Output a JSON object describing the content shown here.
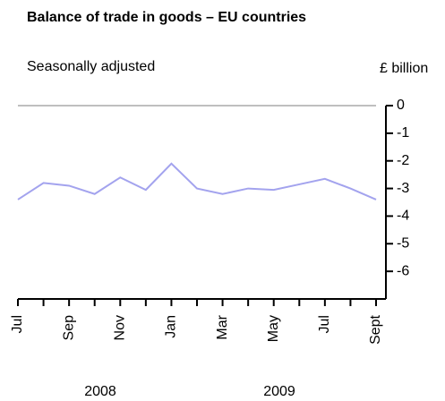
{
  "chart_data": {
    "type": "line",
    "title": "Balance of trade in goods – EU countries",
    "subtitle": "Seasonally adjusted",
    "y_label": "£ billion",
    "categories": [
      "Jul",
      null,
      "Sep",
      null,
      "Nov",
      null,
      "Jan",
      null,
      "Mar",
      null,
      "May",
      null,
      "Jul",
      null,
      "Sept"
    ],
    "years": [
      "2008",
      "2009"
    ],
    "series": [
      {
        "name": "Balance",
        "color": "#a3a3ee",
        "values": [
          -3.4,
          -2.8,
          -2.9,
          -3.2,
          -2.6,
          -3.05,
          -2.1,
          -3.0,
          -3.2,
          -3.0,
          -3.05,
          -2.85,
          -2.65,
          -3.0,
          -3.4
        ]
      }
    ],
    "ylim": [
      -7,
      0
    ],
    "yticks": [
      0,
      -1,
      -2,
      -3,
      -4,
      -5,
      -6
    ],
    "zero_line": true
  }
}
